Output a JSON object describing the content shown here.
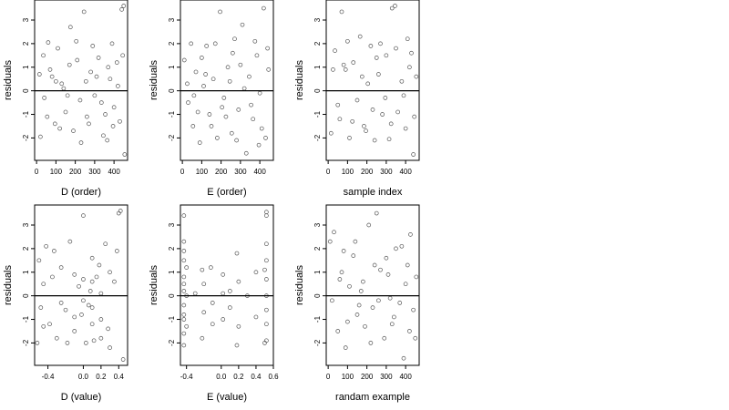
{
  "chart_data": [
    {
      "type": "scatter",
      "xlabel": "D (order)",
      "ylabel": "residuals",
      "xlim": [
        -10,
        470
      ],
      "ylim": [
        -2.95,
        3.85
      ],
      "xticks": [
        0,
        100,
        200,
        300,
        400
      ],
      "yticks": [
        -2,
        -1,
        0,
        1,
        2,
        3
      ],
      "reference_line_y": 0,
      "points": [
        [
          20,
          -1.95
        ],
        [
          35,
          1.5
        ],
        [
          60,
          2.05
        ],
        [
          80,
          0.6
        ],
        [
          95,
          -1.4
        ],
        [
          110,
          1.8
        ],
        [
          130,
          0.3
        ],
        [
          150,
          -0.9
        ],
        [
          170,
          1.1
        ],
        [
          190,
          -1.7
        ],
        [
          205,
          2.1
        ],
        [
          225,
          -0.4
        ],
        [
          245,
          3.35
        ],
        [
          260,
          -1.1
        ],
        [
          280,
          0.8
        ],
        [
          300,
          -0.2
        ],
        [
          320,
          1.4
        ],
        [
          345,
          -1.9
        ],
        [
          365,
          -2.1
        ],
        [
          380,
          0.5
        ],
        [
          400,
          -0.7
        ],
        [
          415,
          1.2
        ],
        [
          430,
          -1.3
        ],
        [
          440,
          3.45
        ],
        [
          450,
          3.6
        ],
        [
          455,
          -2.7
        ],
        [
          40,
          -0.3
        ],
        [
          70,
          0.9
        ],
        [
          120,
          -1.6
        ],
        [
          140,
          0.1
        ],
        [
          175,
          2.7
        ],
        [
          230,
          -2.2
        ],
        [
          255,
          0.4
        ],
        [
          290,
          1.9
        ],
        [
          335,
          -0.5
        ],
        [
          370,
          1.0
        ],
        [
          395,
          -1.5
        ],
        [
          420,
          0.2
        ],
        [
          445,
          1.5
        ],
        [
          15,
          0.7
        ],
        [
          55,
          -1.1
        ],
        [
          100,
          0.4
        ],
        [
          160,
          -0.2
        ],
        [
          210,
          1.3
        ],
        [
          270,
          -1.4
        ],
        [
          310,
          0.6
        ],
        [
          355,
          -1.0
        ],
        [
          390,
          2.0
        ]
      ]
    },
    {
      "type": "scatter",
      "xlabel": "E (order)",
      "ylabel": "residuals",
      "xlim": [
        -10,
        470
      ],
      "ylim": [
        -2.95,
        3.85
      ],
      "xticks": [
        0,
        100,
        200,
        300,
        400
      ],
      "yticks": [
        -2,
        -1,
        0,
        1,
        2,
        3
      ],
      "reference_line_y": 0,
      "points": [
        [
          10,
          1.3
        ],
        [
          30,
          -0.5
        ],
        [
          55,
          -1.5
        ],
        [
          70,
          0.8
        ],
        [
          90,
          -2.2
        ],
        [
          110,
          0.2
        ],
        [
          125,
          1.9
        ],
        [
          140,
          -1.0
        ],
        [
          160,
          0.5
        ],
        [
          180,
          -2.0
        ],
        [
          195,
          3.35
        ],
        [
          215,
          -0.3
        ],
        [
          235,
          1.0
        ],
        [
          255,
          -1.8
        ],
        [
          270,
          2.2
        ],
        [
          290,
          -0.8
        ],
        [
          310,
          2.8
        ],
        [
          330,
          -2.65
        ],
        [
          345,
          0.6
        ],
        [
          365,
          -1.2
        ],
        [
          385,
          1.5
        ],
        [
          400,
          -0.1
        ],
        [
          420,
          3.5
        ],
        [
          430,
          -2.0
        ],
        [
          445,
          0.9
        ],
        [
          25,
          0.3
        ],
        [
          45,
          2.0
        ],
        [
          80,
          -0.9
        ],
        [
          100,
          1.4
        ],
        [
          150,
          -1.5
        ],
        [
          170,
          2.0
        ],
        [
          225,
          -1.1
        ],
        [
          245,
          0.4
        ],
        [
          280,
          -2.1
        ],
        [
          300,
          1.1
        ],
        [
          355,
          -0.6
        ],
        [
          375,
          2.1
        ],
        [
          410,
          -1.6
        ],
        [
          440,
          1.8
        ],
        [
          60,
          -0.2
        ],
        [
          120,
          0.7
        ],
        [
          205,
          -0.7
        ],
        [
          260,
          1.6
        ],
        [
          320,
          0.1
        ],
        [
          395,
          -2.3
        ]
      ]
    },
    {
      "type": "scatter",
      "xlabel": "sample index",
      "ylabel": "residuals",
      "xlim": [
        -10,
        470
      ],
      "ylim": [
        -2.95,
        3.85
      ],
      "xticks": [
        0,
        100,
        200,
        300,
        400
      ],
      "yticks": [
        -2,
        -1,
        0,
        1,
        2,
        3
      ],
      "reference_line_y": 0,
      "points": [
        [
          15,
          -1.8
        ],
        [
          35,
          1.7
        ],
        [
          50,
          -0.6
        ],
        [
          70,
          3.35
        ],
        [
          90,
          0.9
        ],
        [
          110,
          -2.0
        ],
        [
          130,
          1.2
        ],
        [
          150,
          -0.4
        ],
        [
          165,
          2.3
        ],
        [
          185,
          -1.5
        ],
        [
          205,
          0.3
        ],
        [
          220,
          1.9
        ],
        [
          240,
          -2.1
        ],
        [
          260,
          0.7
        ],
        [
          280,
          -1.0
        ],
        [
          300,
          1.5
        ],
        [
          315,
          -2.05
        ],
        [
          330,
          3.5
        ],
        [
          345,
          3.6
        ],
        [
          360,
          -0.9
        ],
        [
          380,
          0.4
        ],
        [
          400,
          -1.6
        ],
        [
          420,
          1.0
        ],
        [
          440,
          -2.7
        ],
        [
          455,
          0.6
        ],
        [
          25,
          0.9
        ],
        [
          60,
          -1.2
        ],
        [
          80,
          1.1
        ],
        [
          125,
          -1.3
        ],
        [
          175,
          0.6
        ],
        [
          230,
          -0.8
        ],
        [
          270,
          2.0
        ],
        [
          295,
          -0.3
        ],
        [
          350,
          1.8
        ],
        [
          410,
          2.2
        ],
        [
          445,
          -1.1
        ],
        [
          100,
          2.1
        ],
        [
          195,
          -1.7
        ],
        [
          250,
          1.4
        ],
        [
          325,
          -1.4
        ],
        [
          390,
          -0.2
        ],
        [
          430,
          1.6
        ]
      ]
    },
    {
      "type": "scatter",
      "xlabel": "D (value)",
      "ylabel": "residuals",
      "xlim": [
        -0.55,
        0.5
      ],
      "ylim": [
        -2.95,
        3.85
      ],
      "xticks": [
        -0.4,
        0.0,
        0.2,
        0.4
      ],
      "xtick_labels": [
        "-0.4",
        "0.0",
        "0.2",
        "0.4"
      ],
      "yticks": [
        -2,
        -1,
        0,
        1,
        2,
        3
      ],
      "reference_line_y": 0,
      "points": [
        [
          -0.52,
          -2.0
        ],
        [
          -0.5,
          1.5
        ],
        [
          -0.45,
          0.5
        ],
        [
          -0.42,
          2.1
        ],
        [
          -0.38,
          -1.2
        ],
        [
          -0.35,
          0.8
        ],
        [
          -0.3,
          -1.8
        ],
        [
          -0.25,
          1.2
        ],
        [
          -0.2,
          -0.6
        ],
        [
          -0.15,
          2.3
        ],
        [
          -0.1,
          -1.5
        ],
        [
          -0.05,
          0.4
        ],
        [
          0.0,
          3.4
        ],
        [
          0.03,
          -2.0
        ],
        [
          0.06,
          -0.4
        ],
        [
          0.1,
          1.6
        ],
        [
          0.12,
          -1.9
        ],
        [
          0.15,
          0.8
        ],
        [
          0.2,
          -1.0
        ],
        [
          0.25,
          2.2
        ],
        [
          0.3,
          -2.2
        ],
        [
          0.35,
          0.6
        ],
        [
          0.4,
          3.5
        ],
        [
          0.42,
          3.6
        ],
        [
          0.45,
          -2.7
        ],
        [
          -0.48,
          -0.5
        ],
        [
          -0.33,
          1.9
        ],
        [
          -0.18,
          -2.0
        ],
        [
          -0.02,
          -0.8
        ],
        [
          0.08,
          0.2
        ],
        [
          0.18,
          1.3
        ],
        [
          0.28,
          -1.4
        ],
        [
          0.38,
          1.9
        ],
        [
          0.1,
          -0.5
        ],
        [
          0.1,
          0.6
        ],
        [
          0.1,
          -1.2
        ],
        [
          0.0,
          -0.2
        ],
        [
          0.0,
          0.7
        ],
        [
          -0.1,
          0.9
        ],
        [
          -0.1,
          -0.9
        ],
        [
          0.2,
          0.1
        ],
        [
          0.2,
          -1.8
        ],
        [
          -0.45,
          -1.3
        ],
        [
          0.3,
          1.0
        ],
        [
          -0.25,
          -0.3
        ]
      ]
    },
    {
      "type": "scatter",
      "xlabel": "E (value)",
      "ylabel": "residuals",
      "xlim": [
        -0.47,
        0.6
      ],
      "ylim": [
        -2.95,
        3.85
      ],
      "xticks": [
        -0.4,
        0.0,
        0.2,
        0.4,
        0.6
      ],
      "xtick_labels": [
        "-0.4",
        "0.0",
        "0.2",
        "0.4",
        "0.6"
      ],
      "yticks": [
        -2,
        -1,
        0,
        1,
        2,
        3
      ],
      "reference_line_y": 0,
      "points": [
        [
          -0.43,
          3.4
        ],
        [
          -0.43,
          2.3
        ],
        [
          -0.43,
          1.5
        ],
        [
          -0.43,
          0.8
        ],
        [
          -0.43,
          0.2
        ],
        [
          -0.43,
          -0.4
        ],
        [
          -0.43,
          -1.0
        ],
        [
          -0.43,
          -1.6
        ],
        [
          -0.43,
          -2.1
        ],
        [
          -0.43,
          1.9
        ],
        [
          -0.43,
          -0.8
        ],
        [
          -0.43,
          0.5
        ],
        [
          -0.4,
          1.2
        ],
        [
          -0.4,
          -1.3
        ],
        [
          -0.4,
          0.0
        ],
        [
          -0.3,
          0.1
        ],
        [
          -0.22,
          1.1
        ],
        [
          -0.22,
          -1.8
        ],
        [
          -0.2,
          0.5
        ],
        [
          -0.2,
          -0.7
        ],
        [
          -0.12,
          1.2
        ],
        [
          -0.1,
          -0.3
        ],
        [
          -0.1,
          -1.2
        ],
        [
          0.02,
          0.9
        ],
        [
          0.02,
          -1.0
        ],
        [
          0.02,
          0.1
        ],
        [
          0.1,
          0.2
        ],
        [
          0.1,
          -0.5
        ],
        [
          0.18,
          1.8
        ],
        [
          0.18,
          -2.1
        ],
        [
          0.2,
          0.6
        ],
        [
          0.2,
          -1.3
        ],
        [
          0.3,
          0.0
        ],
        [
          0.4,
          1.0
        ],
        [
          0.4,
          -0.9
        ],
        [
          0.52,
          3.55
        ],
        [
          0.52,
          3.4
        ],
        [
          0.52,
          2.2
        ],
        [
          0.52,
          1.5
        ],
        [
          0.52,
          0.7
        ],
        [
          0.52,
          0.0
        ],
        [
          0.52,
          -0.6
        ],
        [
          0.52,
          -1.2
        ],
        [
          0.52,
          -1.9
        ],
        [
          0.5,
          1.1
        ],
        [
          0.5,
          -2.0
        ]
      ]
    },
    {
      "type": "scatter",
      "xlabel": "randam example",
      "ylabel": "residuals",
      "xlim": [
        -10,
        470
      ],
      "ylim": [
        -2.95,
        3.85
      ],
      "xticks": [
        0,
        100,
        200,
        300,
        400
      ],
      "yticks": [
        -2,
        -1,
        0,
        1,
        2,
        3
      ],
      "reference_line_y": 0,
      "points": [
        [
          10,
          2.3
        ],
        [
          30,
          2.7
        ],
        [
          50,
          -1.5
        ],
        [
          70,
          1.0
        ],
        [
          90,
          -2.2
        ],
        [
          110,
          0.4
        ],
        [
          130,
          1.7
        ],
        [
          150,
          -0.8
        ],
        [
          170,
          0.2
        ],
        [
          190,
          -1.3
        ],
        [
          210,
          3.0
        ],
        [
          230,
          -0.5
        ],
        [
          250,
          3.5
        ],
        [
          270,
          1.1
        ],
        [
          290,
          -1.8
        ],
        [
          310,
          0.9
        ],
        [
          330,
          -1.2
        ],
        [
          350,
          2.0
        ],
        [
          370,
          -0.3
        ],
        [
          390,
          -2.65
        ],
        [
          410,
          1.3
        ],
        [
          425,
          2.6
        ],
        [
          440,
          -0.6
        ],
        [
          455,
          0.8
        ],
        [
          20,
          -0.2
        ],
        [
          60,
          0.7
        ],
        [
          100,
          -1.1
        ],
        [
          140,
          2.3
        ],
        [
          180,
          0.6
        ],
        [
          220,
          -2.0
        ],
        [
          260,
          -0.2
        ],
        [
          300,
          1.6
        ],
        [
          340,
          -0.9
        ],
        [
          380,
          2.1
        ],
        [
          420,
          -1.5
        ],
        [
          450,
          -1.8
        ],
        [
          80,
          1.9
        ],
        [
          160,
          -0.4
        ],
        [
          240,
          1.3
        ],
        [
          320,
          -0.1
        ],
        [
          400,
          0.5
        ]
      ]
    }
  ]
}
